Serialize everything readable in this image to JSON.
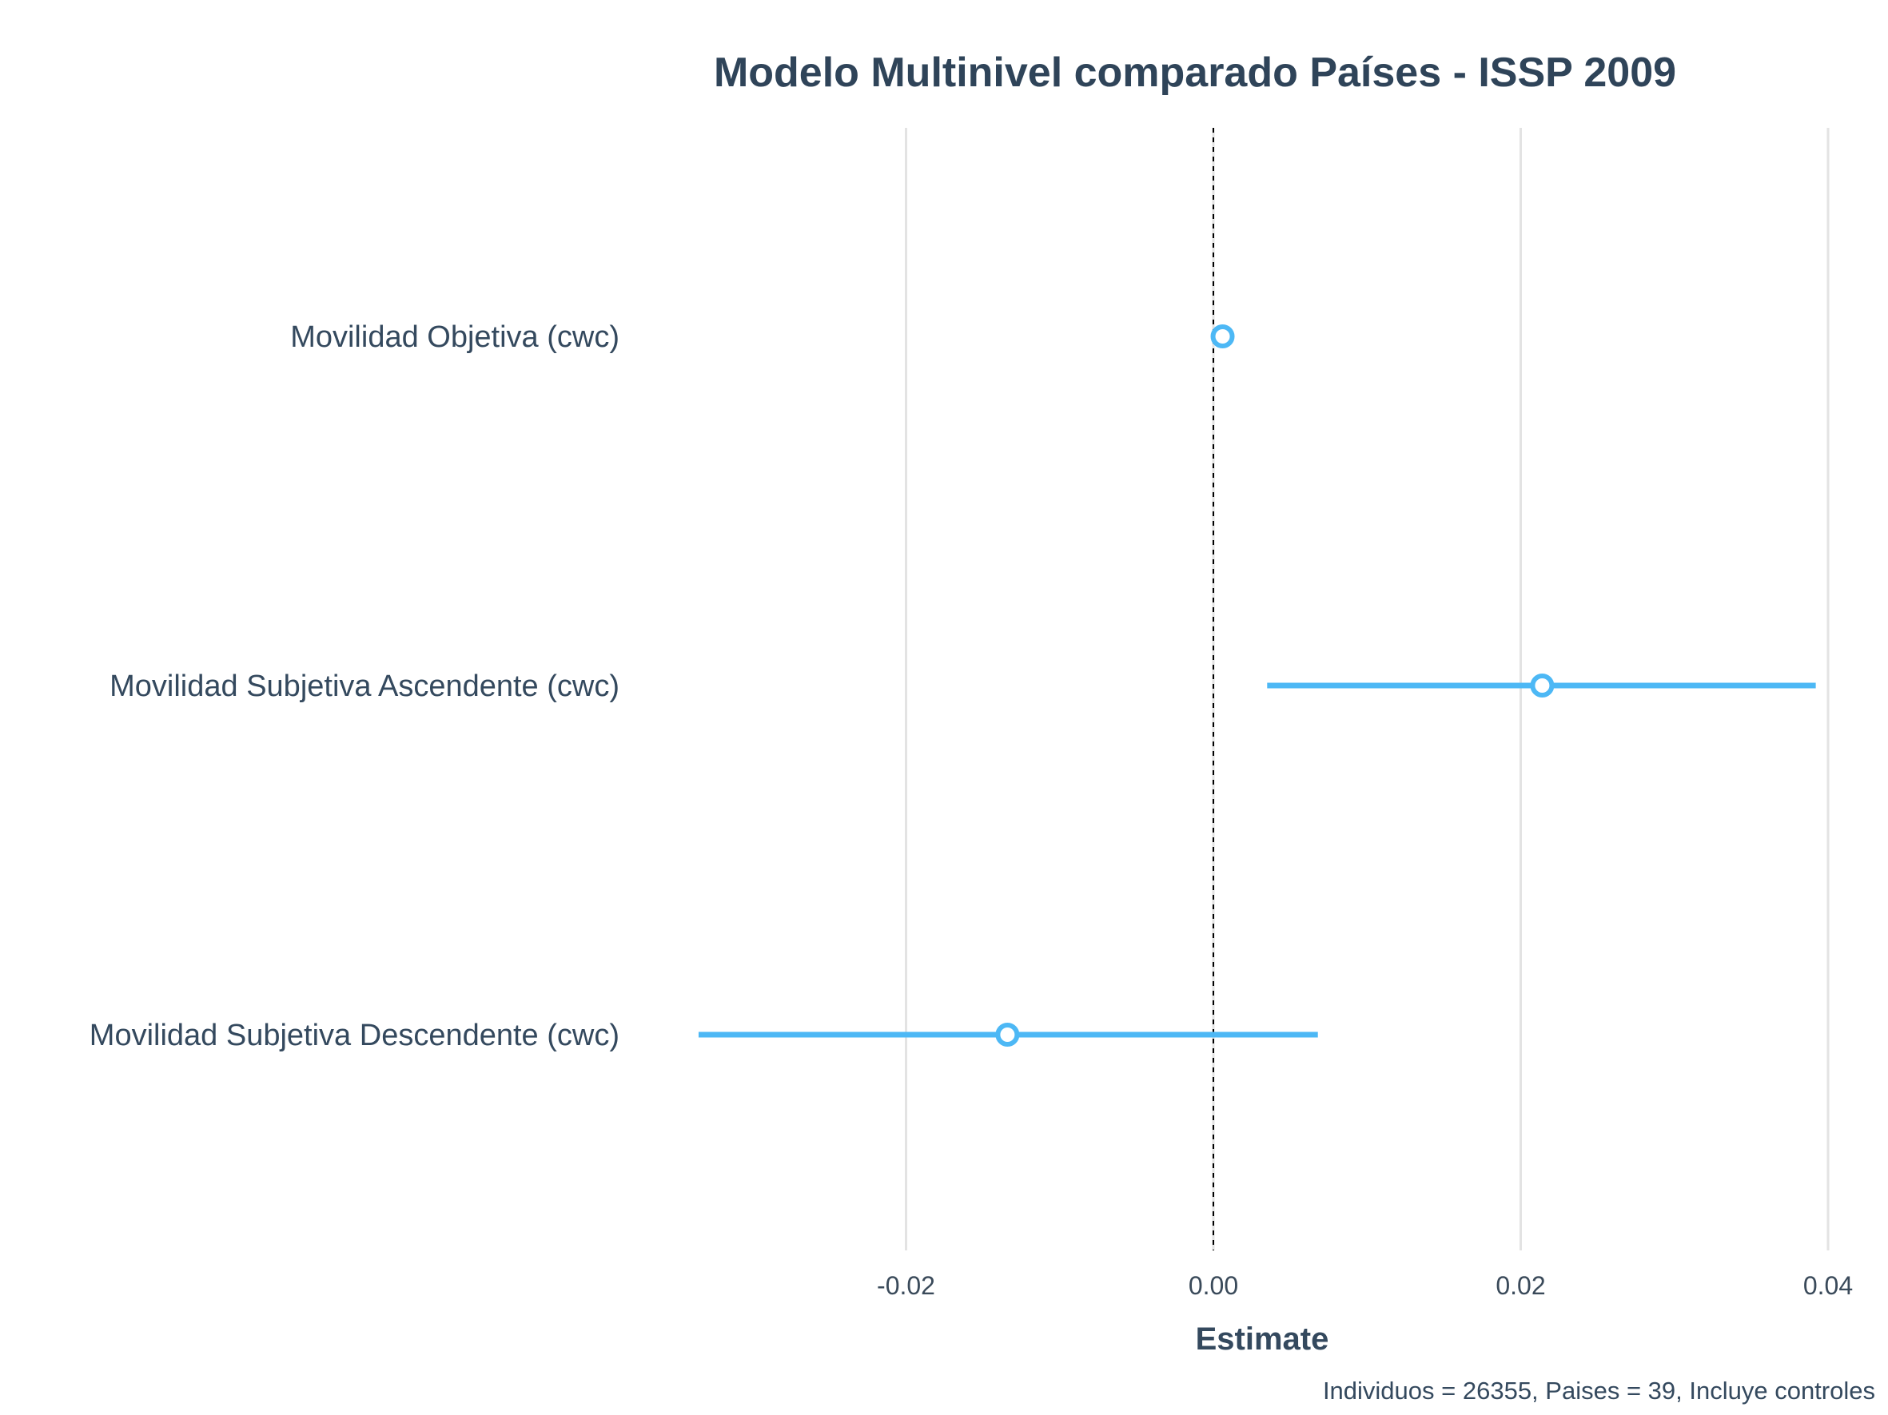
{
  "chart_data": {
    "type": "scatter",
    "title": "Modelo Multinivel comparado Países - ISSP 2009",
    "xlabel": "Estimate",
    "caption": "Individuos = 26355, Paises = 39, Incluye controles",
    "xlim": [
      -0.02,
      0.04
    ],
    "x_ticks": [
      -0.02,
      0.0,
      0.02,
      0.04
    ],
    "x_tick_labels": [
      "-0.02",
      "0.00",
      "0.02",
      "0.04"
    ],
    "reference_line": 0.0,
    "grid": "vertical",
    "terms": [
      {
        "label": "Movilidad Objetiva (cwc)",
        "estimate": 0.0006,
        "conf_low": 0.0002,
        "conf_high": 0.001
      },
      {
        "label": "Movilidad Subjetiva Ascendente (cwc)",
        "estimate": 0.0214,
        "conf_low": 0.0035,
        "conf_high": 0.0392
      },
      {
        "label": "Movilidad Subjetiva Descendente (cwc)",
        "estimate": -0.0134,
        "conf_low": -0.0335,
        "conf_high": 0.0068
      }
    ],
    "colors": {
      "point": "#4db8f5",
      "grid": "#e3e3e3",
      "text": "#34495e"
    }
  }
}
